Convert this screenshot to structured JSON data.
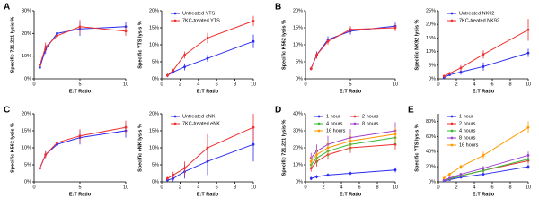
{
  "chart_data": [
    {
      "type": "line",
      "panel_label": "A",
      "ylabel": "Specific 721.221 lysis %",
      "xlabel": "E:T Ratio",
      "x": [
        0.625,
        1.25,
        2.5,
        5,
        10
      ],
      "xlim": [
        0,
        10
      ],
      "xticks": [
        0,
        5,
        10
      ],
      "ylim": [
        0,
        30
      ],
      "yticks": [
        {
          "value": 0,
          "label": "0%"
        },
        {
          "value": 10,
          "label": "10%"
        },
        {
          "value": 20,
          "label": "20%"
        },
        {
          "value": 30,
          "label": "30%"
        }
      ],
      "series": [
        {
          "color": "#2b2bf0",
          "values": [
            5,
            13,
            20,
            22,
            23
          ],
          "errors": [
            1,
            2,
            4,
            3,
            2
          ]
        },
        {
          "color": "#f03030",
          "values": [
            6,
            14,
            19,
            23,
            21
          ],
          "errors": [
            1,
            2,
            3,
            3,
            2
          ]
        }
      ]
    },
    {
      "type": "line",
      "ylabel": "Specific YTS lysis %",
      "xlabel": "E:T Ratio",
      "x": [
        0.625,
        1.25,
        2.5,
        5,
        10
      ],
      "xlim": [
        0,
        10
      ],
      "xticks": [
        0,
        2,
        4,
        6,
        8,
        10
      ],
      "ylim": [
        0,
        20
      ],
      "yticks": [
        {
          "value": 0,
          "label": "0%"
        },
        {
          "value": 5,
          "label": "5%"
        },
        {
          "value": 10,
          "label": "10%"
        },
        {
          "value": 15,
          "label": "15%"
        },
        {
          "value": 20,
          "label": "20%"
        }
      ],
      "legend": "upper left",
      "series": [
        {
          "name": "Untreated YTS",
          "color": "#2b2bf0",
          "values": [
            1,
            2,
            3.5,
            6,
            11
          ],
          "errors": [
            0.5,
            0.5,
            1,
            1,
            2
          ]
        },
        {
          "name": "7KC-treated YTS",
          "color": "#f03030",
          "values": [
            1,
            2.5,
            7,
            12,
            17
          ],
          "errors": [
            0.5,
            0.5,
            1,
            1.5,
            1.5
          ]
        }
      ]
    },
    {
      "type": "line",
      "panel_label": "B",
      "ylabel": "Specific K562 lysis %",
      "xlabel": "E:T Ratio",
      "x": [
        0.625,
        1.25,
        2.5,
        5,
        10
      ],
      "xlim": [
        0,
        10
      ],
      "xticks": [
        0,
        5,
        10
      ],
      "ylim": [
        0,
        20
      ],
      "yticks": [
        {
          "value": 0,
          "label": "0%"
        },
        {
          "value": 5,
          "label": "5%"
        },
        {
          "value": 10,
          "label": "10%"
        },
        {
          "value": 15,
          "label": "15%"
        },
        {
          "value": 20,
          "label": "20%"
        }
      ],
      "series": [
        {
          "color": "#2b2bf0",
          "values": [
            3,
            7,
            11.5,
            14,
            15.5
          ],
          "errors": [
            0.5,
            1,
            1,
            1,
            1
          ]
        },
        {
          "color": "#f03030",
          "values": [
            3,
            7,
            11,
            14.5,
            15
          ],
          "errors": [
            0.5,
            1,
            1,
            1,
            1
          ]
        }
      ]
    },
    {
      "type": "line",
      "ylabel": "Specific NK92 lysis %",
      "xlabel": "E:T Ratio",
      "x": [
        0.625,
        1.25,
        2.5,
        5,
        10
      ],
      "xlim": [
        0,
        10
      ],
      "xticks": [
        0,
        2,
        4,
        6,
        8,
        10
      ],
      "ylim": [
        0,
        25
      ],
      "yticks": [
        {
          "value": 0,
          "label": "0%"
        },
        {
          "value": 5,
          "label": "5%"
        },
        {
          "value": 10,
          "label": "10%"
        },
        {
          "value": 15,
          "label": "15%"
        },
        {
          "value": 20,
          "label": "20%"
        },
        {
          "value": 25,
          "label": "25%"
        }
      ],
      "legend": "upper left",
      "series": [
        {
          "name": "Untreated NK92",
          "color": "#2b2bf0",
          "values": [
            0.5,
            1.5,
            2.5,
            4.5,
            9.5
          ],
          "errors": [
            0.3,
            0.5,
            1,
            1.5,
            1.5
          ]
        },
        {
          "name": "7KC-treated NK92",
          "color": "#f03030",
          "values": [
            1,
            2,
            4,
            9,
            18
          ],
          "errors": [
            0.5,
            0.5,
            1,
            1.5,
            4
          ]
        }
      ]
    },
    {
      "type": "line",
      "panel_label": "C",
      "ylabel": "Specific K562 lysis %",
      "xlabel": "E:T Ratio",
      "x": [
        0.625,
        1.25,
        2.5,
        5,
        10
      ],
      "xlim": [
        0,
        10
      ],
      "xticks": [
        0,
        5,
        10
      ],
      "ylim": [
        0,
        20
      ],
      "yticks": [
        {
          "value": 0,
          "label": "0%"
        },
        {
          "value": 5,
          "label": "5%"
        },
        {
          "value": 10,
          "label": "10%"
        },
        {
          "value": 15,
          "label": "15%"
        },
        {
          "value": 20,
          "label": "20%"
        }
      ],
      "series": [
        {
          "color": "#2b2bf0",
          "values": [
            4,
            8,
            11,
            13,
            15
          ],
          "errors": [
            1,
            1,
            2,
            2,
            2
          ]
        },
        {
          "color": "#f03030",
          "values": [
            4,
            8,
            11.5,
            13.5,
            16
          ],
          "errors": [
            1,
            1,
            1.5,
            2,
            2
          ]
        }
      ]
    },
    {
      "type": "line",
      "ylabel": "Specific eNK lysis %",
      "xlabel": "E:T Ratio",
      "x": [
        0.625,
        1.25,
        2.5,
        5,
        10
      ],
      "xlim": [
        0,
        10
      ],
      "xticks": [
        0,
        2,
        4,
        6,
        8,
        10
      ],
      "ylim": [
        0,
        20
      ],
      "yticks": [
        {
          "value": 0,
          "label": "0%"
        },
        {
          "value": 5,
          "label": "5%"
        },
        {
          "value": 10,
          "label": "10%"
        },
        {
          "value": 15,
          "label": "15%"
        },
        {
          "value": 20,
          "label": "20%"
        }
      ],
      "legend": "upper left",
      "series": [
        {
          "name": "Untreated eNK",
          "color": "#2b2bf0",
          "values": [
            0.5,
            1,
            3,
            6,
            11
          ],
          "errors": [
            0.5,
            1,
            2,
            4,
            5
          ]
        },
        {
          "name": "7KC-treated eNK",
          "color": "#f03030",
          "values": [
            1,
            2,
            4,
            10,
            16
          ],
          "errors": [
            0.5,
            1,
            2,
            4,
            4
          ]
        }
      ]
    },
    {
      "type": "line",
      "panel_label": "D",
      "ylabel": "Specific 721.221 lysis %",
      "xlabel": "E:T Ratio",
      "x": [
        0.625,
        1.25,
        2.5,
        5,
        10
      ],
      "xlim": [
        0,
        10
      ],
      "xticks": [
        0,
        2,
        4,
        6,
        8,
        10
      ],
      "ylim": [
        0,
        40
      ],
      "yticks": [
        {
          "value": 0,
          "label": "0%"
        },
        {
          "value": 10,
          "label": "10%"
        },
        {
          "value": 20,
          "label": "20%"
        },
        {
          "value": 30,
          "label": "30%"
        },
        {
          "value": 40,
          "label": "40%"
        }
      ],
      "legend": "upper left",
      "legend_columns": 2,
      "series": [
        {
          "name": "1 hour",
          "color": "#2b2bf0",
          "values": [
            2,
            3,
            4,
            5,
            7
          ],
          "errors": [
            1,
            1,
            1,
            1,
            1.5
          ]
        },
        {
          "name": "2 hours",
          "color": "#f03030",
          "values": [
            8,
            12,
            16,
            20,
            22
          ],
          "errors": [
            2,
            3,
            3,
            3,
            3
          ]
        },
        {
          "name": "4 hours",
          "color": "#33bb33",
          "values": [
            10,
            14,
            18,
            22,
            26
          ],
          "errors": [
            2,
            3,
            3,
            4,
            4
          ]
        },
        {
          "name": "8 hours",
          "color": "#a040d0",
          "values": [
            14,
            18,
            22,
            26,
            30
          ],
          "errors": [
            3,
            4,
            5,
            5,
            5
          ]
        },
        {
          "name": "16 hours",
          "color": "#ff9900",
          "values": [
            12,
            16,
            20,
            24,
            28
          ],
          "errors": [
            3,
            3,
            4,
            4,
            4
          ]
        }
      ]
    },
    {
      "type": "line",
      "panel_label": "E",
      "ylabel": "Specific YTS lysis %",
      "xlabel": "E:T Ratio",
      "x": [
        0.625,
        1.25,
        2.5,
        5,
        10
      ],
      "xlim": [
        0,
        10
      ],
      "xticks": [
        0,
        2,
        4,
        6,
        8,
        10
      ],
      "ylim": [
        0,
        90
      ],
      "yticks": [
        {
          "value": 0,
          "label": "0%"
        },
        {
          "value": 20,
          "label": "20%"
        },
        {
          "value": 40,
          "label": "40%"
        },
        {
          "value": 60,
          "label": "60%"
        },
        {
          "value": 80,
          "label": "80%"
        }
      ],
      "legend": "upper left",
      "series": [
        {
          "name": "1 hour",
          "color": "#2b2bf0",
          "values": [
            1,
            3,
            6,
            10,
            20
          ],
          "errors": [
            0.5,
            1,
            1,
            2,
            3
          ]
        },
        {
          "name": "2 hours",
          "color": "#f03030",
          "values": [
            2,
            4,
            8,
            15,
            28
          ],
          "errors": [
            1,
            1,
            2,
            3,
            4
          ]
        },
        {
          "name": "4 hours",
          "color": "#33bb33",
          "values": [
            2,
            4,
            8,
            15,
            30
          ],
          "errors": [
            1,
            1,
            2,
            3,
            4
          ]
        },
        {
          "name": "8 hours",
          "color": "#a040d0",
          "values": [
            2,
            5,
            10,
            18,
            35
          ],
          "errors": [
            1,
            1,
            2,
            3,
            5
          ]
        },
        {
          "name": "16 hours",
          "color": "#ff9900",
          "values": [
            5,
            10,
            20,
            35,
            72
          ],
          "errors": [
            1,
            2,
            3,
            5,
            8
          ]
        }
      ]
    }
  ]
}
